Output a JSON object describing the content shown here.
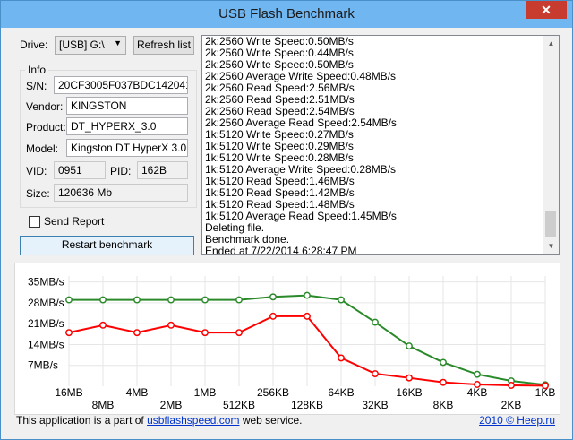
{
  "window": {
    "title": "USB Flash Benchmark",
    "close_glyph": "✕"
  },
  "drive": {
    "label": "Drive:",
    "value": "[USB] G:\\",
    "refresh_label": "Refresh list"
  },
  "info": {
    "group_label": "Info",
    "sn_label": "S/N:",
    "sn_value": "20CF3005F037BDC1420416A8",
    "vendor_label": "Vendor:",
    "vendor_value": "KINGSTON",
    "product_label": "Product:",
    "product_value": "DT_HYPERX_3.0",
    "model_label": "Model:",
    "model_value": "Kingston DT HyperX 3.0",
    "vid_label": "VID:",
    "vid_value": "0951",
    "pid_label": "PID:",
    "pid_value": "162B",
    "size_label": "Size:",
    "size_value": "120636 Mb"
  },
  "send_report": {
    "label": "Send Report",
    "checked": false
  },
  "restart_label": "Restart benchmark",
  "log_lines": [
    "2k:2560 Write Speed:0.50MB/s",
    "2k:2560 Write Speed:0.44MB/s",
    "2k:2560 Write Speed:0.50MB/s",
    "2k:2560 Average Write Speed:0.48MB/s",
    "2k:2560 Read Speed:2.56MB/s",
    "2k:2560 Read Speed:2.51MB/s",
    "2k:2560 Read Speed:2.54MB/s",
    "2k:2560 Average Read Speed:2.54MB/s",
    "1k:5120 Write Speed:0.27MB/s",
    "1k:5120 Write Speed:0.29MB/s",
    "1k:5120 Write Speed:0.28MB/s",
    "1k:5120 Average Write Speed:0.28MB/s",
    "1k:5120 Read Speed:1.46MB/s",
    "1k:5120 Read Speed:1.42MB/s",
    "1k:5120 Read Speed:1.48MB/s",
    "1k:5120 Average Read Speed:1.45MB/s",
    "Deleting file.",
    "Benchmark done.",
    "Ended at 7/22/2014 6:28:47 PM"
  ],
  "footer": {
    "prefix": "This application is a part of ",
    "link": "usbflashspeed.com",
    "suffix": " web service.",
    "copyright_link": "2010 © Heep.ru"
  },
  "chart_data": {
    "type": "line",
    "categories": [
      "16MB",
      "8MB",
      "4MB",
      "2MB",
      "1MB",
      "512KB",
      "256KB",
      "128KB",
      "64KB",
      "32KB",
      "16KB",
      "8KB",
      "4KB",
      "2KB",
      "1KB"
    ],
    "y_tick_labels": [
      "7MB/s",
      "14MB/s",
      "21MB/s",
      "28MB/s",
      "35MB/s"
    ],
    "ylim": [
      0,
      37
    ],
    "grid": true,
    "series": [
      {
        "color": "#2a8a2a",
        "values": [
          29.0,
          29.0,
          29.0,
          29.0,
          29.0,
          29.0,
          30.0,
          30.5,
          29.0,
          21.5,
          13.5,
          8.0,
          4.0,
          1.8,
          0.5
        ]
      },
      {
        "color": "#ff0000",
        "values": [
          18.0,
          20.5,
          18.0,
          20.5,
          18.0,
          18.0,
          23.5,
          23.5,
          9.5,
          4.2,
          2.8,
          1.3,
          0.6,
          0.3,
          0.2
        ]
      }
    ]
  }
}
